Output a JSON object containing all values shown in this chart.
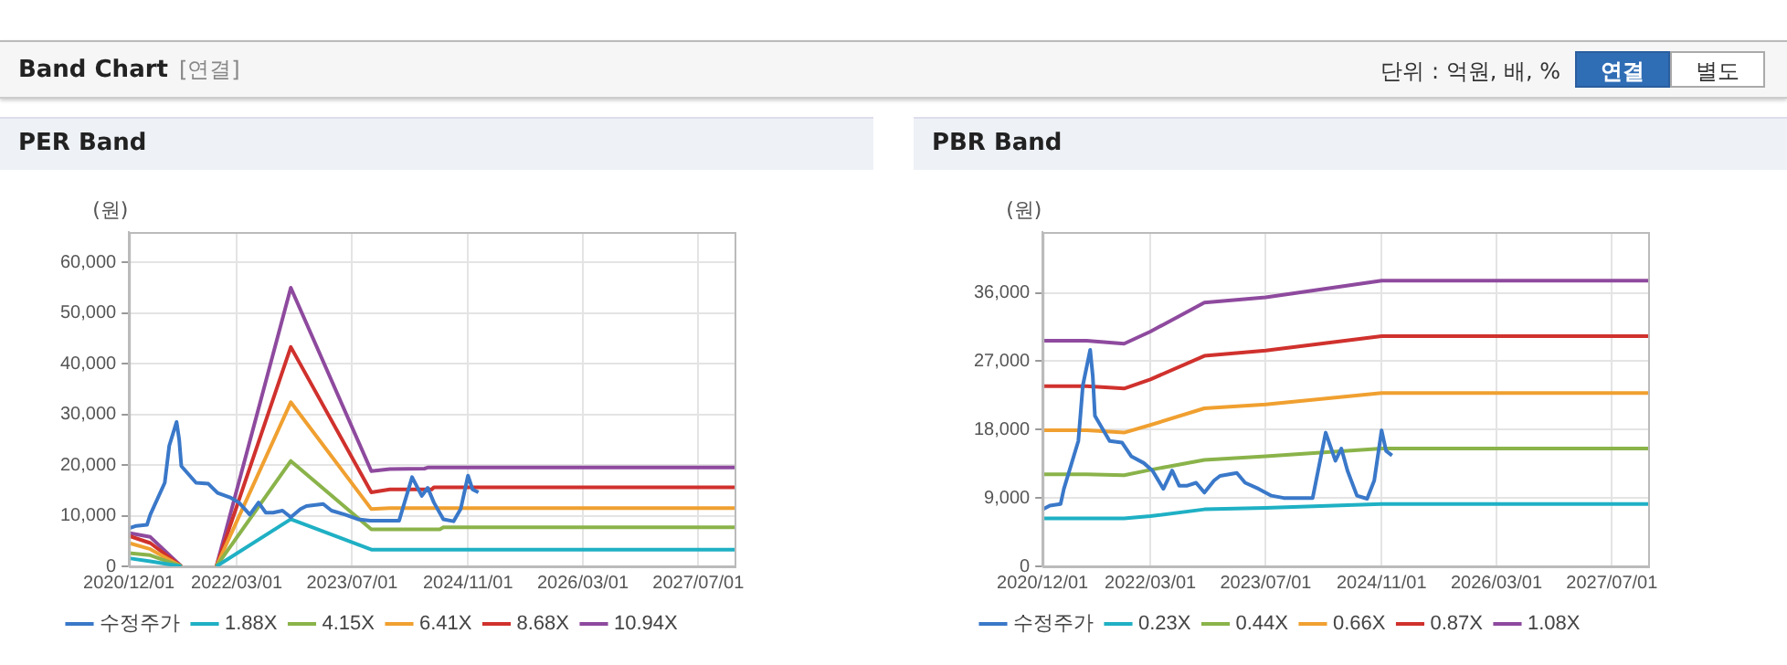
{
  "chart_data": [
    {
      "type": "other",
      "title": "Band Chart",
      "annotations": [
        "[연결]",
        "단위 : 억원, 배, %",
        "연결",
        "별도"
      ]
    },
    {
      "type": "line",
      "title": "PER Band",
      "ylabel": "(원)",
      "grid": true,
      "legend": "bottom",
      "xlim": [
        "2020-12-01",
        "2027-12-01"
      ],
      "xticks": [
        {
          "value": "2020-12-01",
          "label": "2020/12/01"
        },
        {
          "value": "2022-03-01",
          "label": "2022/03/01"
        },
        {
          "value": "2023-07-01",
          "label": "2023/07/01"
        },
        {
          "value": "2024-11-01",
          "label": "2024/11/01"
        },
        {
          "value": "2026-03-01",
          "label": "2026/03/01"
        },
        {
          "value": "2027-07-01",
          "label": "2027/07/01"
        }
      ],
      "ylim": [
        0,
        66000
      ],
      "yticks": [
        0,
        {
          "value": 10000,
          "label": "10,000"
        },
        {
          "value": 20000,
          "label": "20,000"
        },
        {
          "value": 30000,
          "label": "30,000"
        },
        {
          "value": 40000,
          "label": "40,000"
        },
        {
          "value": 50000,
          "label": "50,000"
        },
        {
          "value": 60000,
          "label": "60,000"
        }
      ],
      "series": [
        {
          "name": "수정주가",
          "color": "#3a78c9",
          "x": [
            "2020-12-01",
            "2021-01-01",
            "2021-02-15",
            "2021-03-01",
            "2021-05-01",
            "2021-05-20",
            "2021-06-20",
            "2021-07-01",
            "2021-07-10",
            "2021-09-10",
            "2021-11-01",
            "2021-12-10",
            "2022-02-01",
            "2022-03-10",
            "2022-04-25",
            "2022-06-01",
            "2022-07-01",
            "2022-08-01",
            "2022-09-10",
            "2022-10-15",
            "2022-11-25",
            "2022-12-20",
            "2023-03-01",
            "2023-04-05",
            "2023-06-01",
            "2023-07-25",
            "2023-09-15",
            "2024-01-15",
            "2024-03-10",
            "2024-04-20",
            "2024-05-15",
            "2024-06-10",
            "2024-07-20",
            "2024-09-01",
            "2024-10-01",
            "2024-11-01",
            "2024-11-20",
            "2024-12-15"
          ],
          "values": [
            7500,
            8000,
            8200,
            10200,
            16500,
            23800,
            28500,
            25000,
            19800,
            16500,
            16300,
            14500,
            13600,
            12600,
            10200,
            12600,
            10600,
            10600,
            11000,
            9700,
            11300,
            11900,
            12300,
            11000,
            10200,
            9300,
            9000,
            9000,
            17600,
            13900,
            15500,
            12600,
            9300,
            8900,
            11300,
            17900,
            15200,
            14600
          ]
        },
        {
          "name": "1.88X",
          "color": "#1fb0c4",
          "x": [
            "2020-12-01",
            "2021-03-01",
            "2021-07-10",
            "2021-09-01",
            "2021-12-05",
            "2022-10-15",
            "2023-09-20",
            "2027-12-01"
          ],
          "values": [
            1600,
            1000,
            0,
            null,
            0,
            9300,
            3300,
            3300
          ]
        },
        {
          "name": "4.15X",
          "color": "#8ab34a",
          "x": [
            "2020-12-01",
            "2021-03-01",
            "2021-07-10",
            "2021-09-01",
            "2021-12-05",
            "2022-10-15",
            "2023-09-20",
            "2024-07-05",
            "2024-07-20",
            "2027-12-01"
          ],
          "values": [
            2600,
            2200,
            0,
            null,
            0,
            20800,
            7300,
            7300,
            7700,
            7700
          ]
        },
        {
          "name": "6.41X",
          "color": "#f0a030",
          "x": [
            "2020-12-01",
            "2021-03-01",
            "2021-07-10",
            "2021-09-01",
            "2021-12-05",
            "2022-10-15",
            "2023-09-20",
            "2023-12-07",
            "2027-12-01"
          ],
          "values": [
            4600,
            3400,
            0,
            null,
            0,
            32400,
            11300,
            11500,
            11500
          ]
        },
        {
          "name": "8.68X",
          "color": "#d0312d",
          "x": [
            "2020-12-01",
            "2021-03-01",
            "2021-07-10",
            "2021-09-01",
            "2021-12-05",
            "2022-10-15",
            "2023-09-20",
            "2023-12-07",
            "2024-06-01",
            "2024-06-10",
            "2027-12-01"
          ],
          "values": [
            6000,
            4600,
            0,
            null,
            0,
            43300,
            14600,
            15200,
            15200,
            15600,
            15600
          ]
        },
        {
          "name": "10.94X",
          "color": "#8e4a9e",
          "x": [
            "2020-12-01",
            "2021-03-01",
            "2021-07-10",
            "2021-09-01",
            "2021-12-05",
            "2022-10-15",
            "2023-09-20",
            "2023-12-07",
            "2024-05-01",
            "2024-05-15",
            "2027-12-01"
          ],
          "values": [
            6600,
            5800,
            0,
            null,
            0,
            55000,
            18800,
            19200,
            19300,
            19500,
            19500
          ]
        }
      ]
    },
    {
      "type": "line",
      "title": "PBR Band",
      "ylabel": "(원)",
      "grid": true,
      "legend": "bottom",
      "xlim": [
        "2020-12-01",
        "2027-12-01"
      ],
      "xticks": [
        {
          "value": "2020-12-01",
          "label": "2020/12/01"
        },
        {
          "value": "2022-03-01",
          "label": "2022/03/01"
        },
        {
          "value": "2023-07-01",
          "label": "2023/07/01"
        },
        {
          "value": "2024-11-01",
          "label": "2024/11/01"
        },
        {
          "value": "2026-03-01",
          "label": "2026/03/01"
        },
        {
          "value": "2027-07-01",
          "label": "2027/07/01"
        }
      ],
      "ylim": [
        0,
        44000
      ],
      "yticks": [
        0,
        {
          "value": 9000,
          "label": "9,000"
        },
        {
          "value": 18000,
          "label": "18,000"
        },
        {
          "value": 27000,
          "label": "27,000"
        },
        {
          "value": 36000,
          "label": "36,000"
        }
      ],
      "series": [
        {
          "name": "수정주가",
          "color": "#3a78c9",
          "x": [
            "2020-12-01",
            "2021-01-01",
            "2021-02-15",
            "2021-03-01",
            "2021-05-01",
            "2021-05-20",
            "2021-06-20",
            "2021-07-01",
            "2021-07-10",
            "2021-09-10",
            "2021-11-01",
            "2021-12-10",
            "2022-02-01",
            "2022-03-10",
            "2022-04-25",
            "2022-06-01",
            "2022-07-01",
            "2022-08-01",
            "2022-09-10",
            "2022-10-15",
            "2022-11-25",
            "2022-12-20",
            "2023-03-01",
            "2023-04-05",
            "2023-06-01",
            "2023-07-25",
            "2023-09-15",
            "2024-01-15",
            "2024-03-10",
            "2024-04-20",
            "2024-05-15",
            "2024-06-10",
            "2024-07-20",
            "2024-09-01",
            "2024-10-01",
            "2024-11-01",
            "2024-11-20",
            "2024-12-15"
          ],
          "values": [
            7500,
            8000,
            8200,
            10200,
            16500,
            23800,
            28500,
            25000,
            19800,
            16500,
            16300,
            14500,
            13600,
            12600,
            10200,
            12600,
            10600,
            10600,
            11000,
            9700,
            11300,
            11900,
            12300,
            11000,
            10200,
            9300,
            9000,
            9000,
            17600,
            13900,
            15500,
            12600,
            9300,
            8900,
            11300,
            17900,
            15200,
            14600
          ]
        },
        {
          "name": "0.23X",
          "color": "#1fb0c4",
          "x": [
            "2020-12-01",
            "2021-06-05",
            "2021-11-10",
            "2022-03-01",
            "2022-10-15",
            "2023-07-01",
            "2024-11-01",
            "2027-12-01"
          ],
          "values": [
            6300,
            6300,
            6300,
            6600,
            7500,
            7700,
            8200,
            8200
          ]
        },
        {
          "name": "0.44X",
          "color": "#8ab34a",
          "x": [
            "2020-12-01",
            "2021-06-05",
            "2021-11-10",
            "2022-03-01",
            "2022-10-15",
            "2023-07-01",
            "2024-11-01",
            "2027-12-01"
          ],
          "values": [
            12100,
            12100,
            12000,
            12700,
            14000,
            14500,
            15500,
            15500
          ]
        },
        {
          "name": "0.66X",
          "color": "#f0a030",
          "x": [
            "2020-12-01",
            "2021-06-05",
            "2021-11-10",
            "2022-03-01",
            "2022-10-15",
            "2023-07-01",
            "2024-11-01",
            "2027-12-01"
          ],
          "values": [
            17900,
            17900,
            17600,
            18600,
            20800,
            21300,
            22800,
            22800
          ]
        },
        {
          "name": "0.87X",
          "color": "#d0312d",
          "x": [
            "2020-12-01",
            "2021-06-05",
            "2021-11-10",
            "2022-03-01",
            "2022-10-15",
            "2023-07-01",
            "2024-11-01",
            "2027-12-01"
          ],
          "values": [
            23700,
            23700,
            23400,
            24600,
            27700,
            28400,
            30300,
            30300
          ]
        },
        {
          "name": "1.08X",
          "color": "#8e4a9e",
          "x": [
            "2020-12-01",
            "2021-06-05",
            "2021-11-10",
            "2022-03-01",
            "2022-10-15",
            "2023-07-01",
            "2024-11-01",
            "2027-12-01"
          ],
          "values": [
            29700,
            29700,
            29300,
            30900,
            34700,
            35400,
            37600,
            37600
          ]
        }
      ]
    }
  ]
}
